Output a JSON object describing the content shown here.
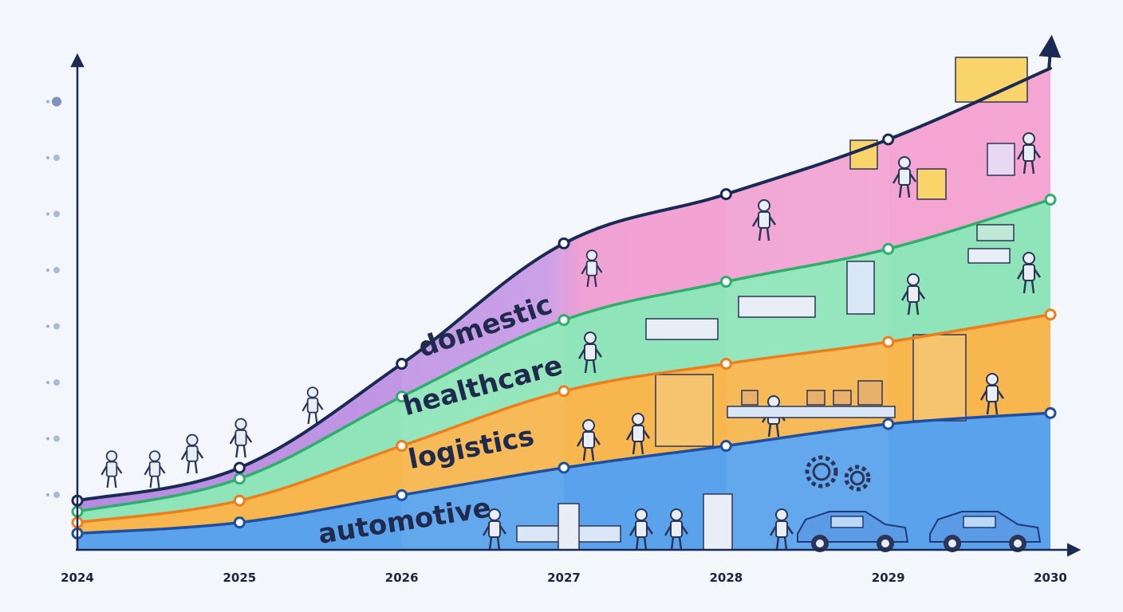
{
  "chart_data": {
    "type": "area",
    "title": "",
    "xlabel": "",
    "ylabel": "",
    "x": [
      2024,
      2025,
      2026,
      2027,
      2028,
      2029,
      2030
    ],
    "x_tick_labels": [
      "2024",
      "2025",
      "2026",
      "2027",
      "2028",
      "2029",
      "2030"
    ],
    "y_tick_labels_shown": false,
    "ylim": [
      0,
      9
    ],
    "stacked": true,
    "grid": false,
    "legend": "none",
    "series": [
      {
        "name": "automotive",
        "values": [
          0.3,
          0.5,
          1.0,
          1.5,
          1.9,
          2.3,
          2.5
        ]
      },
      {
        "name": "logistics",
        "values": [
          0.2,
          0.4,
          0.9,
          1.4,
          1.5,
          1.5,
          1.8
        ]
      },
      {
        "name": "healthcare",
        "values": [
          0.2,
          0.4,
          0.9,
          1.3,
          1.5,
          1.7,
          2.1
        ]
      },
      {
        "name": "domestic",
        "values": [
          0.2,
          0.2,
          0.6,
          1.4,
          1.6,
          2.0,
          2.4
        ]
      }
    ],
    "colors": {
      "automotive": "#5aa3ec",
      "logistics": "#f7b64e",
      "healthcare": "#8fe5b9",
      "domestic": "#c99ae6",
      "domestic_late": "#f3a0cf",
      "line_automotive": "#1f4fa0",
      "line_logistics": "#ee7d1c",
      "line_healthcare": "#2fae6c",
      "line_total": "#1b2a55",
      "axis": "#1b2a55"
    }
  }
}
